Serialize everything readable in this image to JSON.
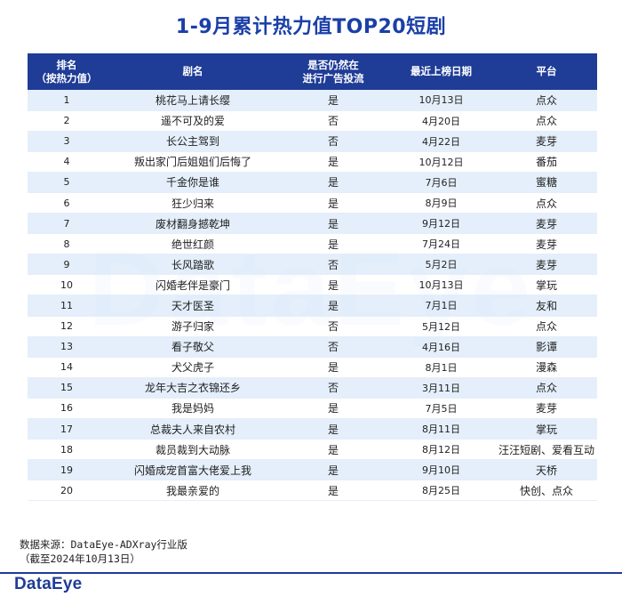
{
  "title": "1-9月累计热力值TOP20短剧",
  "watermark": "DataEye",
  "table": {
    "headers": [
      "排名\n（按热力值）",
      "剧名",
      "是否仍然在\n进行广告投流",
      "最近上榜日期",
      "平台"
    ],
    "rows": [
      {
        "rank": "1",
        "name": "桃花马上请长缨",
        "ad": "是",
        "date": "10月13日",
        "platform": "点众"
      },
      {
        "rank": "2",
        "name": "遥不可及的爱",
        "ad": "否",
        "date": "4月20日",
        "platform": "点众"
      },
      {
        "rank": "3",
        "name": "长公主驾到",
        "ad": "否",
        "date": "4月22日",
        "platform": "麦芽"
      },
      {
        "rank": "4",
        "name": "叛出家门后姐姐们后悔了",
        "ad": "是",
        "date": "10月12日",
        "platform": "番茄"
      },
      {
        "rank": "5",
        "name": "千金你是谁",
        "ad": "是",
        "date": "7月6日",
        "platform": "蜜糖"
      },
      {
        "rank": "6",
        "name": "狂少归来",
        "ad": "是",
        "date": "8月9日",
        "platform": "点众"
      },
      {
        "rank": "7",
        "name": "废材翻身撼乾坤",
        "ad": "是",
        "date": "9月12日",
        "platform": "麦芽"
      },
      {
        "rank": "8",
        "name": "绝世红颜",
        "ad": "是",
        "date": "7月24日",
        "platform": "麦芽"
      },
      {
        "rank": "9",
        "name": "长风踏歌",
        "ad": "否",
        "date": "5月2日",
        "platform": "麦芽"
      },
      {
        "rank": "10",
        "name": "闪婚老伴是豪门",
        "ad": "是",
        "date": "10月13日",
        "platform": "掌玩"
      },
      {
        "rank": "11",
        "name": "天才医圣",
        "ad": "是",
        "date": "7月1日",
        "platform": "友和"
      },
      {
        "rank": "12",
        "name": "游子归家",
        "ad": "否",
        "date": "5月12日",
        "platform": "点众"
      },
      {
        "rank": "13",
        "name": "看子敬父",
        "ad": "否",
        "date": "4月16日",
        "platform": "影谭"
      },
      {
        "rank": "14",
        "name": "犬父虎子",
        "ad": "是",
        "date": "8月1日",
        "platform": "漫森"
      },
      {
        "rank": "15",
        "name": "龙年大吉之衣锦还乡",
        "ad": "否",
        "date": "3月11日",
        "platform": "点众"
      },
      {
        "rank": "16",
        "name": "我是妈妈",
        "ad": "是",
        "date": "7月5日",
        "platform": "麦芽"
      },
      {
        "rank": "17",
        "name": "总裁夫人来自农村",
        "ad": "是",
        "date": "8月11日",
        "platform": "掌玩"
      },
      {
        "rank": "18",
        "name": "裁员裁到大动脉",
        "ad": "是",
        "date": "8月12日",
        "platform": "汪汪短剧、爱看互动"
      },
      {
        "rank": "19",
        "name": "闪婚成宠首富大佬爱上我",
        "ad": "是",
        "date": "9月10日",
        "platform": "天桥"
      },
      {
        "rank": "20",
        "name": "我最亲爱的",
        "ad": "是",
        "date": "8月25日",
        "platform": "快创、点众"
      }
    ]
  },
  "source": {
    "line1": "数据来源：DataEye-ADXray行业版",
    "line2": "（截至2024年10月13日）"
  },
  "brand": "DataEye",
  "colors": {
    "title": "#1a3fa8",
    "header_bg": "#1f3c96",
    "stripe": "#dceafa"
  }
}
